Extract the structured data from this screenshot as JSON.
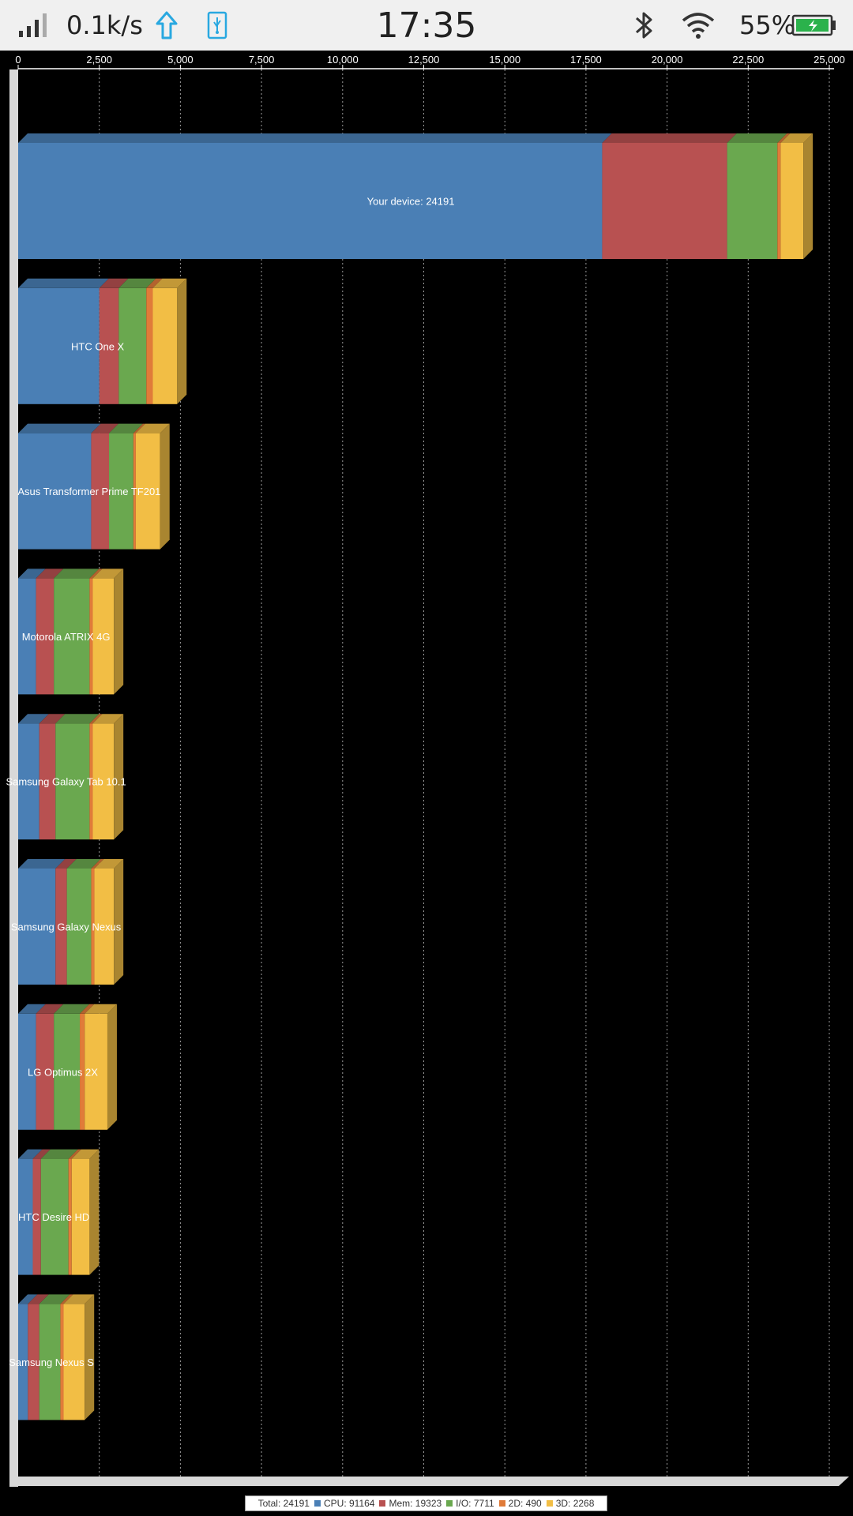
{
  "status_bar": {
    "net_speed": "0.1k/s",
    "time": "17:35",
    "battery_percent": "55%",
    "icons": [
      "signal-icon",
      "upload-icon",
      "usb-icon",
      "bluetooth-icon",
      "wifi-icon",
      "battery-icon"
    ],
    "upload_color": "#29a8e0",
    "battery_color": "#2bb24c"
  },
  "chart_data": {
    "type": "bar",
    "orientation": "horizontal",
    "stacked": true,
    "x_ticks": [
      "0",
      "2,500",
      "5,000",
      "7,500",
      "10,000",
      "12,500",
      "15,000",
      "17,500",
      "20,000",
      "22,500",
      "25,000"
    ],
    "xlim": [
      0,
      25000
    ],
    "grid": true,
    "categories": [
      "Your device: 24191",
      "HTC One X",
      "Asus Transformer Prime TF201",
      "Motorola ATRIX 4G",
      "Samsung Galaxy Tab 10.1",
      "Samsung Galaxy Nexus",
      "LG Optimus 2X",
      "HTC Desire HD",
      "Samsung Nexus S"
    ],
    "series": [
      {
        "name": "CPU",
        "color": "#4a7fb5",
        "values": [
          18000,
          2500,
          2250,
          550,
          650,
          1150,
          550,
          450,
          300
        ]
      },
      {
        "name": "Mem",
        "color": "#b85151",
        "values": [
          3850,
          600,
          550,
          550,
          500,
          350,
          550,
          250,
          350
        ]
      },
      {
        "name": "I/O",
        "color": "#6aa84f",
        "values": [
          1550,
          850,
          750,
          1100,
          1050,
          750,
          800,
          850,
          650
        ]
      },
      {
        "name": "2D",
        "color": "#e07b39",
        "values": [
          100,
          200,
          75,
          100,
          100,
          100,
          150,
          100,
          100
        ]
      },
      {
        "name": "3D",
        "color": "#f2be45",
        "values": [
          700,
          750,
          750,
          650,
          650,
          600,
          700,
          550,
          650
        ]
      }
    ],
    "legend": {
      "position": "bottom",
      "total_label": "Total: 24191",
      "items": [
        "CPU: 91164",
        "Mem: 19323",
        "I/O: 7711",
        "2D: 490",
        "3D: 2268"
      ]
    }
  }
}
